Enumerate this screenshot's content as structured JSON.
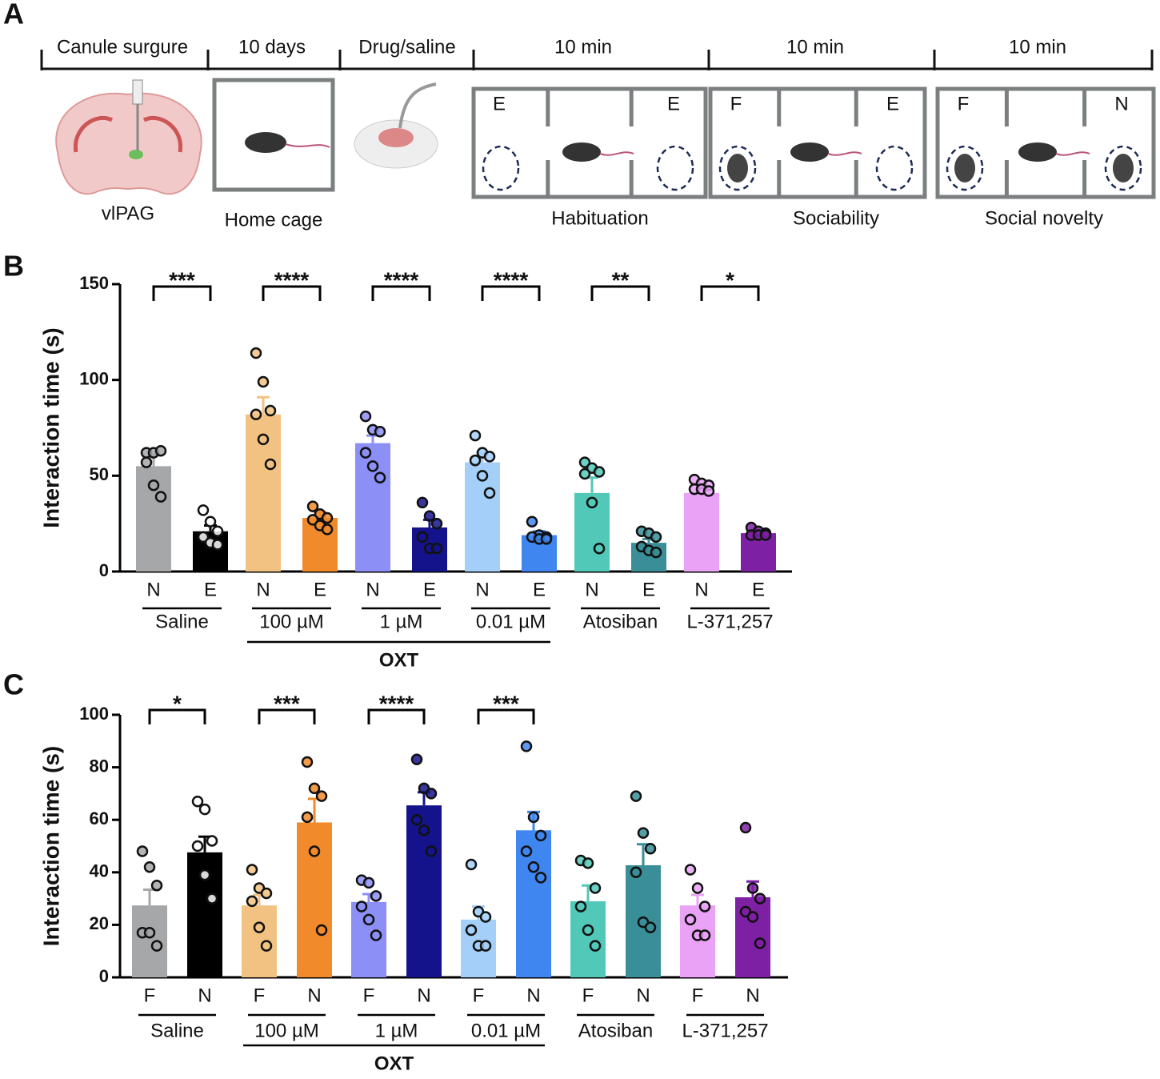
{
  "diagram": {
    "panel": "A",
    "timeline": [
      "Canule surgure",
      "10 days",
      "Drug/saline",
      "10 min",
      "10 min",
      "10 min"
    ],
    "captions": [
      "vlPAG",
      "Home cage",
      "Habituation",
      "Sociability",
      "Social novelty"
    ],
    "chambers": [
      [
        "E",
        "E"
      ],
      [
        "F",
        "E"
      ],
      [
        "F",
        "N"
      ]
    ]
  },
  "chart_data": [
    {
      "type": "bar",
      "panel": "B",
      "y_label": "Interaction time (s)",
      "categories": [
        "N",
        "E",
        "N",
        "E",
        "N",
        "E",
        "N",
        "E",
        "N",
        "E",
        "N",
        "E"
      ],
      "groups": [
        "Saline",
        "100 µM",
        "1 µM",
        "0.01 µM",
        "Atosiban",
        "L-371,257"
      ],
      "supergroup": "OXT",
      "values": [
        55,
        21,
        82,
        28,
        67,
        23,
        57,
        19,
        41,
        15,
        41,
        20
      ],
      "errors": [
        6,
        3,
        9,
        3,
        4,
        4,
        5,
        2,
        8,
        2,
        2,
        1
      ],
      "points": [
        [
          62,
          62,
          63,
          57,
          45,
          39
        ],
        [
          32,
          26,
          21,
          18,
          15,
          14
        ],
        [
          114,
          99,
          84,
          82,
          69,
          56
        ],
        [
          34,
          30,
          28,
          27,
          24,
          22
        ],
        [
          81,
          74,
          73,
          62,
          55,
          49
        ],
        [
          36,
          29,
          25,
          18,
          12,
          12
        ],
        [
          71,
          62,
          60,
          58,
          50,
          41
        ],
        [
          26,
          19,
          18,
          18,
          17,
          17
        ],
        [
          57,
          54,
          52,
          51,
          36,
          12
        ],
        [
          21,
          20,
          18,
          13,
          11,
          10
        ],
        [
          48,
          46,
          45,
          43,
          43,
          42
        ],
        [
          23,
          21,
          20,
          19,
          19,
          19
        ]
      ],
      "colors": [
        "#a6a7a9",
        "#000000",
        "#f2c283",
        "#f08a2a",
        "#8b8ff6",
        "#14138c",
        "#a3cff8",
        "#3f86f0",
        "#52c9b8",
        "#3a8e97",
        "#e9a2f6",
        "#7e20a4"
      ],
      "significance": [
        "***",
        "****",
        "****",
        "****",
        "**",
        "*"
      ],
      "ylim": [
        0,
        150
      ],
      "yticks": [
        0,
        50,
        100,
        150
      ]
    },
    {
      "type": "bar",
      "panel": "C",
      "y_label": "Interaction time (s)",
      "categories": [
        "F",
        "N",
        "F",
        "N",
        "F",
        "N",
        "F",
        "N",
        "F",
        "N",
        "F",
        "N"
      ],
      "groups": [
        "Saline",
        "100 µM",
        "1 µM",
        "0.01 µM",
        "Atosiban",
        "L-371,257"
      ],
      "supergroup": "OXT",
      "values": [
        27.4,
        47.6,
        27.4,
        59,
        28.7,
        65.5,
        22,
        56,
        29,
        42.7,
        27.4,
        30.5
      ],
      "errors": [
        6,
        6,
        4,
        9,
        3,
        5,
        5,
        7,
        6,
        8,
        4,
        6
      ],
      "points": [
        [
          48,
          42,
          35,
          17,
          17,
          12
        ],
        [
          67,
          64,
          52,
          50,
          39,
          30
        ],
        [
          41,
          34,
          32,
          29,
          19,
          12
        ],
        [
          82,
          72,
          69,
          61,
          48,
          18
        ],
        [
          37,
          36,
          31,
          27,
          22,
          16
        ],
        [
          83,
          72,
          70,
          60,
          56,
          48
        ],
        [
          43,
          25,
          23,
          18,
          12,
          12
        ],
        [
          88,
          61,
          54,
          48,
          42,
          38
        ],
        [
          44.5,
          43.5,
          34,
          27,
          18,
          12
        ],
        [
          69,
          55,
          49,
          40,
          21,
          19
        ],
        [
          41,
          34,
          27,
          22,
          16,
          16
        ],
        [
          57,
          34,
          30,
          25,
          23,
          13
        ]
      ],
      "colors": [
        "#a6a7a9",
        "#000000",
        "#f2c283",
        "#f08a2a",
        "#8b8ff6",
        "#14138c",
        "#a3cff8",
        "#3f86f0",
        "#52c9b8",
        "#3a8e97",
        "#e9a2f6",
        "#7e20a4"
      ],
      "significance": [
        "*",
        "***",
        "****",
        "***"
      ],
      "ylim": [
        0,
        100
      ],
      "yticks": [
        0,
        20,
        40,
        60,
        80,
        100
      ]
    }
  ]
}
